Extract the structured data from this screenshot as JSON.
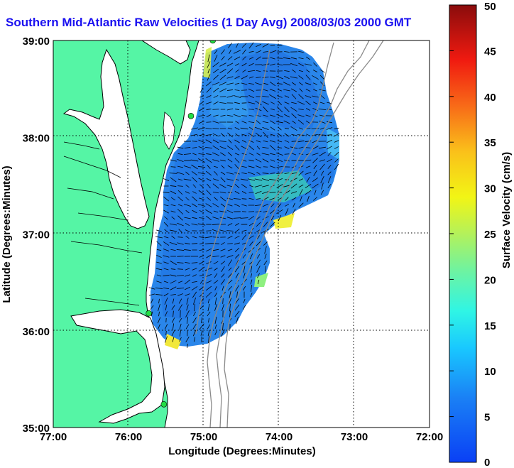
{
  "title": "Southern Mid-Atlantic Raw Velocities (1 Day Avg) 2008/03/03 2000 GMT",
  "x_axis": {
    "label": "Longitude (Degrees:Minutes)",
    "ticks": [
      "77:00",
      "76:00",
      "75:00",
      "74:00",
      "73:00",
      "72:00"
    ]
  },
  "y_axis": {
    "label": "Latitude (Degrees:Minutes)",
    "ticks": [
      "39:00",
      "38:00",
      "37:00",
      "36:00",
      "35:00"
    ]
  },
  "colorbar": {
    "label": "Surface Velocity (cm/s)",
    "ticks": [
      "50",
      "45",
      "40",
      "35",
      "30",
      "25",
      "20",
      "15",
      "10",
      "5",
      "0"
    ],
    "min": 0,
    "max": 50,
    "colormap": "jet"
  },
  "colors": {
    "title": "#1a10f0",
    "land": "#55f5a5",
    "coastline": "#000000",
    "bathymetry": "#8a8a8a",
    "station": "#22dd44",
    "field": "#2a86ea"
  },
  "map": {
    "lon_range": [
      -77,
      -72
    ],
    "lat_range": [
      35,
      39
    ],
    "grid": true,
    "stations": [
      {
        "lon": -74.88,
        "lat": 39.0
      },
      {
        "lon": -75.17,
        "lat": 38.22
      },
      {
        "lon": -75.73,
        "lat": 36.18
      },
      {
        "lon": -75.53,
        "lat": 35.24
      }
    ]
  }
}
